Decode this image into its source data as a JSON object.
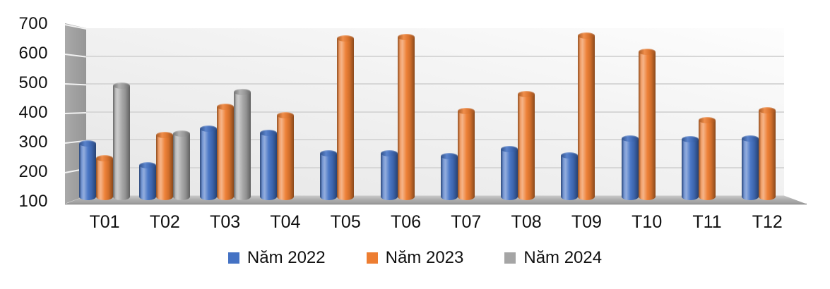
{
  "chart_data": {
    "type": "bar",
    "style": "3d-cylinder",
    "title": "",
    "xlabel": "",
    "ylabel": "",
    "categories": [
      "T01",
      "T02",
      "T03",
      "T04",
      "T05",
      "T06",
      "T07",
      "T08",
      "T09",
      "T10",
      "T11",
      "T12"
    ],
    "series": [
      {
        "name": "Năm 2022",
        "color": "#4472C4",
        "values": [
          295,
          220,
          345,
          330,
          260,
          262,
          252,
          276,
          255,
          310,
          308,
          312
        ]
      },
      {
        "name": "Năm 2023",
        "color": "#ED7D31",
        "values": [
          245,
          322,
          418,
          390,
          650,
          655,
          403,
          462,
          660,
          605,
          372,
          406
        ]
      },
      {
        "name": "Năm 2024",
        "color": "#A5A5A5",
        "values": [
          490,
          327,
          468,
          null,
          null,
          null,
          null,
          null,
          null,
          null,
          null,
          null
        ]
      }
    ],
    "y_ticks": [
      700,
      600,
      500,
      400,
      300,
      200,
      100
    ],
    "ylim": [
      100,
      700
    ],
    "grid": true,
    "legend_position": "bottom"
  }
}
